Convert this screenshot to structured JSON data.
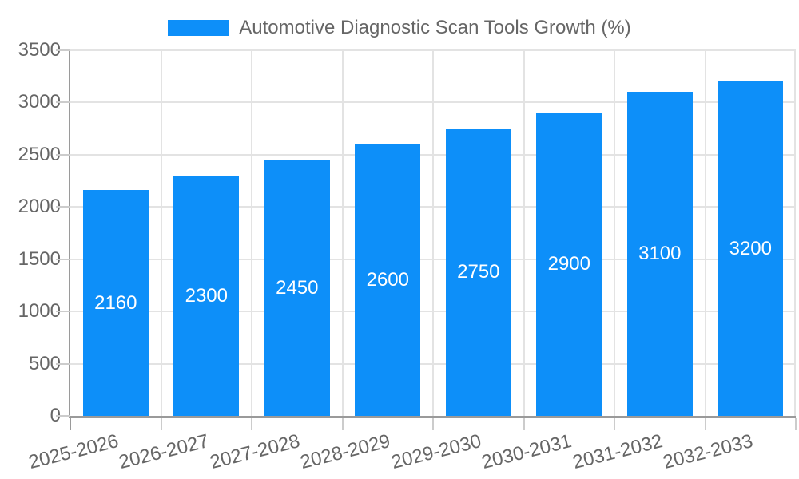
{
  "chart_data": {
    "type": "bar",
    "title": "Automotive Diagnostic Scan Tools Growth (%)",
    "categories": [
      "2025-2026",
      "2026-2027",
      "2027-2028",
      "2028-2029",
      "2029-2030",
      "2030-2031",
      "2031-2032",
      "2032-2033"
    ],
    "series": [
      {
        "name": "Automotive Diagnostic Scan Tools Growth (%)",
        "values": [
          2160,
          2300,
          2450,
          2600,
          2750,
          2900,
          3100,
          3200
        ]
      }
    ],
    "xlabel": "",
    "ylabel": "",
    "ylim": [
      0,
      3500
    ],
    "yticks": [
      0,
      500,
      1000,
      1500,
      2000,
      2500,
      3000,
      3500
    ],
    "grid": true,
    "legend_position": "top-center",
    "value_label_position": "inside-center",
    "colors": {
      "bar": "#0D8FF9",
      "axis_text": "#666666",
      "value_label_text": "#FFFFFF",
      "gridline": "#E3E3E3",
      "axis_line": "#9A9A9A",
      "tick": "#CCCCCC",
      "background": "#FFFFFF"
    }
  }
}
